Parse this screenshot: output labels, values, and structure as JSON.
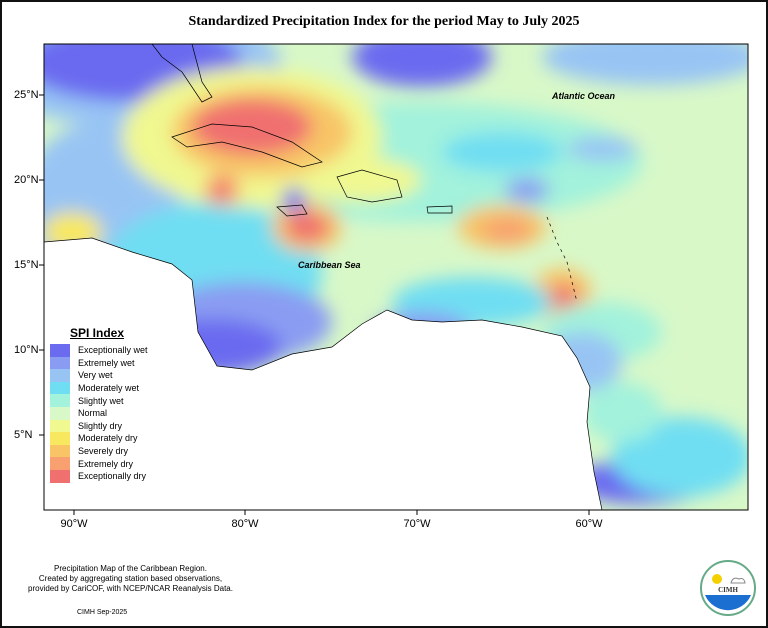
{
  "title": "Standardized Precipitation Index for the period May to July 2025",
  "lat_labels": [
    "25°N",
    "20°N",
    "15°N",
    "10°N",
    "5°N"
  ],
  "lon_labels": [
    "90°W",
    "80°W",
    "70°W",
    "60°W"
  ],
  "labels": {
    "atlantic": "Atlantic Ocean",
    "caribbean": "Caribbean Sea"
  },
  "legend": {
    "title": "SPI Index",
    "items": [
      {
        "label": "Exceptionally wet",
        "color": "#6b6bf0"
      },
      {
        "label": "Extremely wet",
        "color": "#8a9cf2"
      },
      {
        "label": "Very wet",
        "color": "#98c4f4"
      },
      {
        "label": "Moderately wet",
        "color": "#70def2"
      },
      {
        "label": "Slightly wet",
        "color": "#a2f2dc"
      },
      {
        "label": "Normal",
        "color": "#d8f8c8"
      },
      {
        "label": "Slightly dry",
        "color": "#f0f890"
      },
      {
        "label": "Moderately dry",
        "color": "#f8e860"
      },
      {
        "label": "Severely dry",
        "color": "#f8c466"
      },
      {
        "label": "Extremely dry",
        "color": "#f8a070"
      },
      {
        "label": "Exceptionally dry",
        "color": "#f07070"
      }
    ]
  },
  "credits": [
    "Precipitation Map of the Caribbean Region.",
    "Created by aggregating station based observations,",
    "provided by CariCOF, with NCEP/NCAR Reanalysis Data."
  ],
  "date_note": "CIMH Sep-2025",
  "logo_text": "CIMH"
}
